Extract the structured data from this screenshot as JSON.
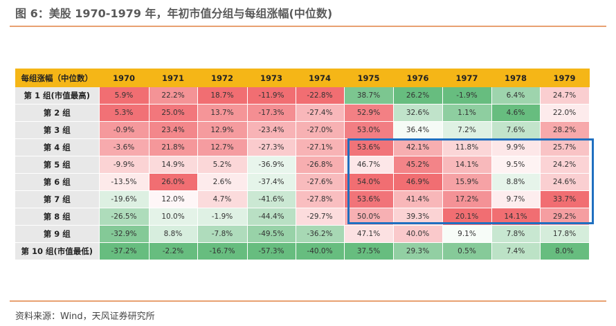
{
  "title": "图 6：美股 1970-1979 年，年初市值分组与每组涨幅(中位数)",
  "source": "资料来源：Wind，天风证券研究所",
  "chart_data": {
    "type": "heatmap",
    "corner_label": "每组涨幅（中位数）",
    "columns": [
      "1970",
      "1971",
      "1972",
      "1973",
      "1974",
      "1975",
      "1976",
      "1977",
      "1978",
      "1979"
    ],
    "rows": [
      {
        "label": "第 1 组(市值最高)",
        "values": [
          "5.9%",
          "22.2%",
          "18.7%",
          "-11.9%",
          "-22.8%",
          "38.7%",
          "26.2%",
          "-1.9%",
          "6.4%",
          "24.7%"
        ]
      },
      {
        "label": "第 2 组",
        "values": [
          "5.3%",
          "25.0%",
          "13.7%",
          "-17.3%",
          "-27.4%",
          "52.9%",
          "32.6%",
          "1.1%",
          "4.6%",
          "22.0%"
        ]
      },
      {
        "label": "第 3 组",
        "values": [
          "-0.9%",
          "23.4%",
          "12.9%",
          "-23.4%",
          "-27.0%",
          "53.0%",
          "36.4%",
          "7.2%",
          "7.6%",
          "28.2%"
        ]
      },
      {
        "label": "第 4 组",
        "values": [
          "-3.6%",
          "21.8%",
          "12.7%",
          "-27.3%",
          "-27.1%",
          "53.6%",
          "42.1%",
          "11.8%",
          "9.9%",
          "25.7%"
        ]
      },
      {
        "label": "第 5 组",
        "values": [
          "-9.9%",
          "14.9%",
          "5.2%",
          "-36.9%",
          "-26.8%",
          "46.7%",
          "45.2%",
          "14.1%",
          "9.5%",
          "24.2%"
        ]
      },
      {
        "label": "第 6 组",
        "values": [
          "-13.5%",
          "26.0%",
          "2.6%",
          "-37.4%",
          "-27.6%",
          "54.0%",
          "46.9%",
          "15.9%",
          "8.8%",
          "24.6%"
        ]
      },
      {
        "label": "第 7 组",
        "values": [
          "-19.6%",
          "12.0%",
          "4.7%",
          "-41.6%",
          "-27.8%",
          "53.6%",
          "41.4%",
          "17.2%",
          "9.7%",
          "33.7%"
        ]
      },
      {
        "label": "第 8 组",
        "values": [
          "-26.5%",
          "10.0%",
          "-1.9%",
          "-44.4%",
          "-29.7%",
          "50.0%",
          "39.3%",
          "20.1%",
          "14.1%",
          "29.2%"
        ]
      },
      {
        "label": "第 9 组",
        "values": [
          "-32.9%",
          "8.8%",
          "-7.8%",
          "-49.5%",
          "-36.2%",
          "47.1%",
          "40.0%",
          "9.1%",
          "7.8%",
          "17.8%"
        ]
      },
      {
        "label": "第 10 组(市值最低)",
        "values": [
          "-37.2%",
          "-2.2%",
          "-16.7%",
          "-57.3%",
          "-40.0%",
          "37.5%",
          "29.3%",
          "0.5%",
          "7.4%",
          "8.0%"
        ]
      }
    ],
    "color_scale": {
      "high": "#f0666b",
      "mid": "#ffffff",
      "low": "#5fb978"
    },
    "highlight": {
      "rows": [
        "第 4 组",
        "第 8 组"
      ],
      "columns": [
        "1975",
        "1979"
      ],
      "color": "#1f6fc0"
    }
  }
}
